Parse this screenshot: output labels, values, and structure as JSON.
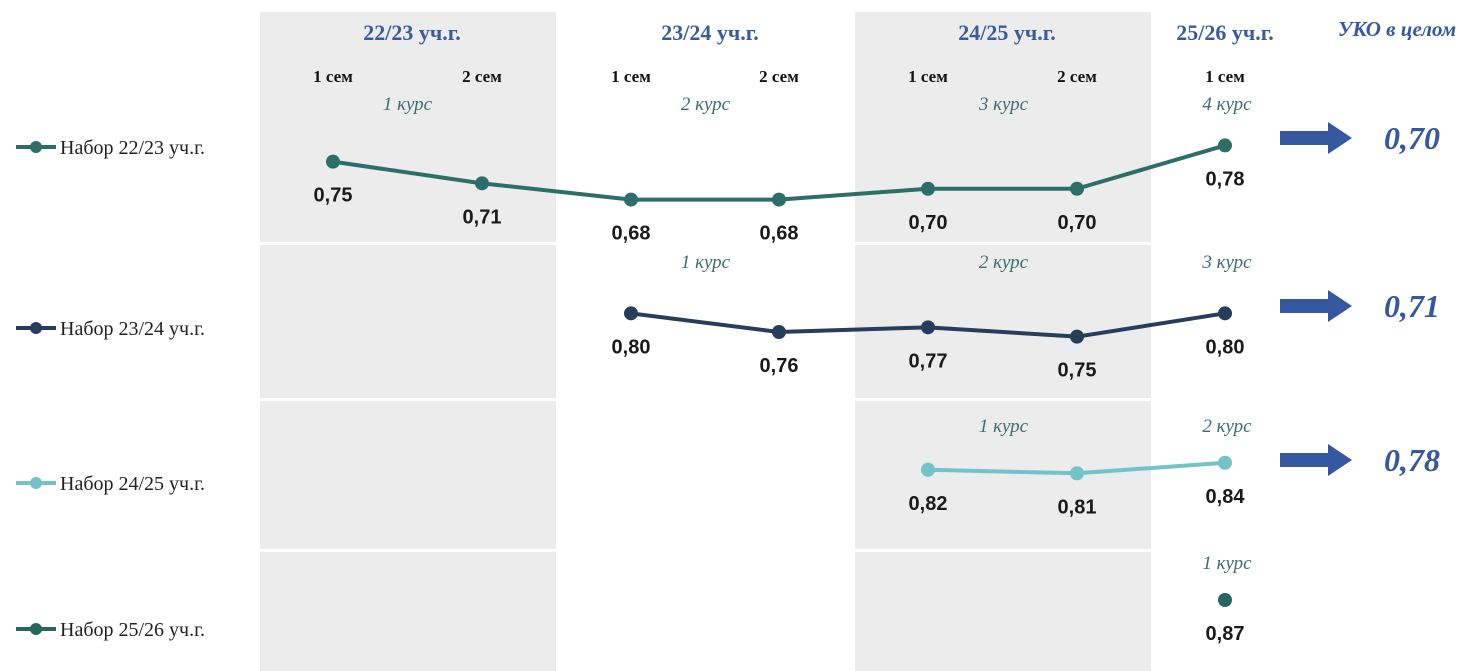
{
  "chart_data": {
    "type": "line",
    "year_headers": [
      "22/23 уч.г.",
      "23/24 уч.г.",
      "24/25 уч.г.",
      "25/26 уч.г."
    ],
    "categories": [
      "1 сем",
      "2 сем",
      "1 сем",
      "2 сем",
      "1 сем",
      "2 сем",
      "1 сем"
    ],
    "summary_title": "УКО в целом",
    "series": [
      {
        "name": "Набор 22/23 уч.г.",
        "color": "#2e6e6a",
        "values": [
          0.75,
          0.71,
          0.68,
          0.68,
          0.7,
          0.7,
          0.78
        ],
        "labels": [
          "0,75",
          "0,71",
          "0,68",
          "0,68",
          "0,70",
          "0,70",
          "0,78"
        ],
        "courses": [
          {
            "text": "1 курс",
            "col": 0.5
          },
          {
            "text": "2 курс",
            "col": 2.5
          },
          {
            "text": "3 курс",
            "col": 4.5
          },
          {
            "text": "4 курс",
            "col": 6
          }
        ],
        "summary": "0,70"
      },
      {
        "name": "Набор 23/24 уч.г.",
        "color": "#263d5c",
        "values": [
          null,
          null,
          0.8,
          0.76,
          0.77,
          0.75,
          0.8
        ],
        "labels": [
          "",
          "",
          "0,80",
          "0,76",
          "0,77",
          "0,75",
          "0,80"
        ],
        "courses": [
          {
            "text": "1 курс",
            "col": 2.5
          },
          {
            "text": "2 курс",
            "col": 4.5
          },
          {
            "text": "3 курс",
            "col": 6
          }
        ],
        "summary": "0,71"
      },
      {
        "name": "Набор 24/25 уч.г.",
        "color": "#72c2c8",
        "values": [
          null,
          null,
          null,
          null,
          0.82,
          0.81,
          0.84
        ],
        "labels": [
          "",
          "",
          "",
          "",
          "0,82",
          "0,81",
          "0,84"
        ],
        "courses": [
          {
            "text": "1 курс",
            "col": 4.5
          },
          {
            "text": "2 курс",
            "col": 6
          }
        ],
        "summary": "0,78"
      },
      {
        "name": "Набор 25/26 уч.г.",
        "color": "#256660",
        "values": [
          null,
          null,
          null,
          null,
          null,
          null,
          0.87
        ],
        "labels": [
          "",
          "",
          "",
          "",
          "",
          "",
          "0,87"
        ],
        "courses": [
          {
            "text": "1 курс",
            "col": 6
          }
        ],
        "summary": ""
      }
    ],
    "colors": {
      "header_blue": "#3b5a9a",
      "course_teal": "#3a6f6c",
      "arrow_blue": "#3558a0",
      "summary_blue": "#3658a2",
      "shade": "#ececec"
    },
    "grid": false,
    "legend_placement": "left"
  }
}
